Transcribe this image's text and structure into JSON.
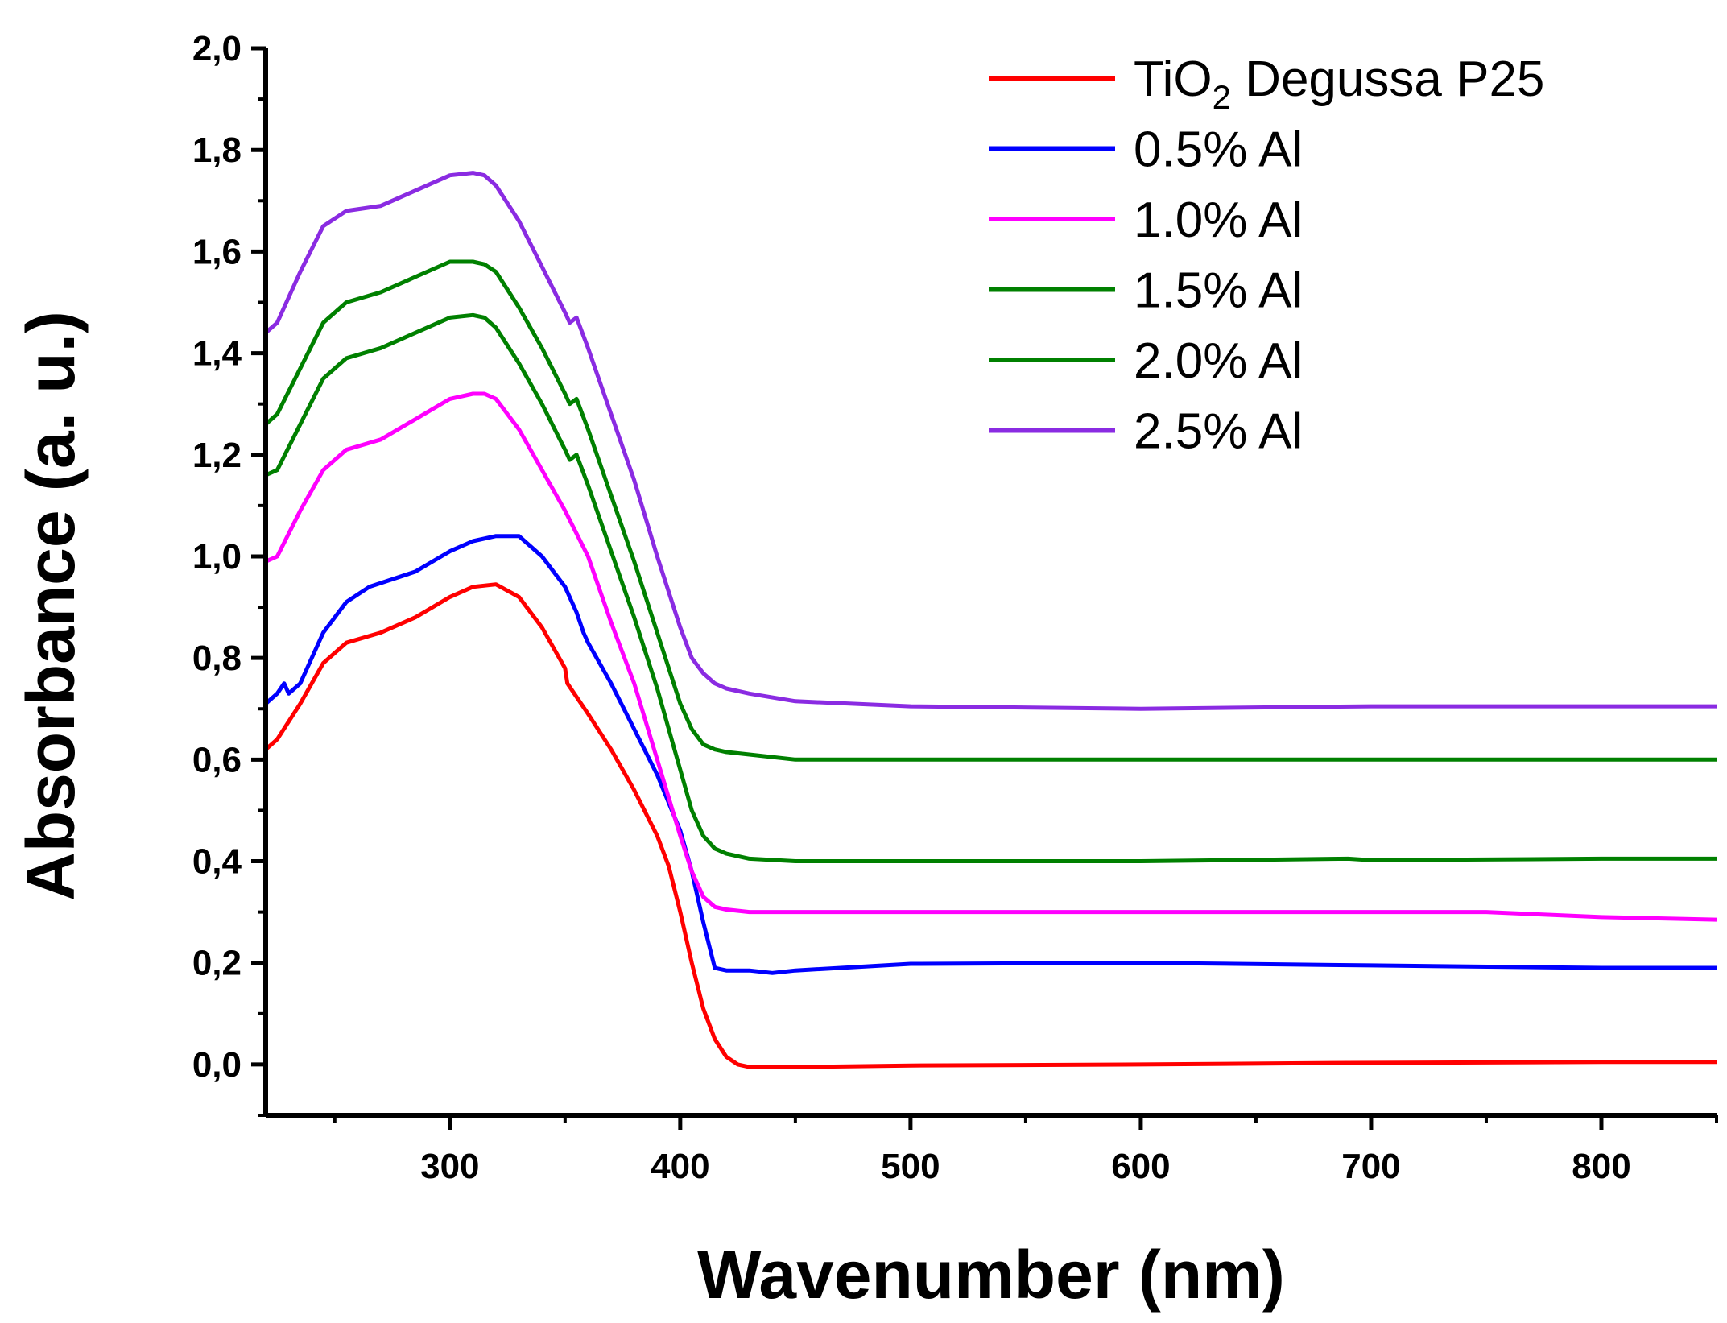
{
  "chart_data": {
    "type": "line",
    "xlabel": "Wavenumber (nm)",
    "ylabel": "Absorbance (a. u.)",
    "xlim": [
      220,
      850
    ],
    "ylim": [
      -0.1,
      2.0
    ],
    "x_ticks": [
      300,
      400,
      500,
      600,
      700,
      800
    ],
    "x_tick_labels": [
      "300",
      "400",
      "500",
      "600",
      "700",
      "800"
    ],
    "y_ticks": [
      0.0,
      0.2,
      0.4,
      0.6,
      0.8,
      1.0,
      1.2,
      1.4,
      1.6,
      1.8,
      2.0
    ],
    "y_tick_labels": [
      "0,0",
      "0,2",
      "0,4",
      "0,6",
      "0,8",
      "1,0",
      "1,2",
      "1,4",
      "1,6",
      "1,8",
      "2,0"
    ],
    "legend_position": "top-right",
    "series": [
      {
        "name": "TiO2 Degussa P25",
        "legend_main": "TiO",
        "legend_sub": "2",
        "legend_rest": " Degussa P25",
        "color": "#ff0000",
        "x": [
          220,
          225,
          235,
          245,
          255,
          270,
          285,
          300,
          310,
          320,
          330,
          340,
          350,
          351,
          360,
          370,
          380,
          390,
          395,
          400,
          405,
          410,
          415,
          420,
          425,
          430,
          440,
          450,
          500,
          600,
          690,
          800,
          850
        ],
        "y": [
          0.62,
          0.64,
          0.71,
          0.79,
          0.83,
          0.85,
          0.88,
          0.92,
          0.94,
          0.945,
          0.92,
          0.86,
          0.78,
          0.75,
          0.69,
          0.62,
          0.54,
          0.45,
          0.39,
          0.3,
          0.2,
          0.11,
          0.05,
          0.015,
          0.0,
          -0.005,
          -0.005,
          -0.005,
          -0.002,
          0.0,
          0.003,
          0.005,
          0.005
        ]
      },
      {
        "name": "0.5% Al",
        "color": "#0000ff",
        "x": [
          220,
          225,
          228,
          230,
          235,
          245,
          255,
          265,
          285,
          300,
          310,
          320,
          330,
          340,
          350,
          355,
          358,
          360,
          370,
          380,
          390,
          400,
          405,
          410,
          415,
          420,
          430,
          440,
          450,
          500,
          600,
          700,
          800,
          850
        ],
        "y": [
          0.71,
          0.73,
          0.75,
          0.73,
          0.75,
          0.85,
          0.91,
          0.94,
          0.97,
          1.01,
          1.03,
          1.04,
          1.04,
          1.0,
          0.94,
          0.89,
          0.85,
          0.83,
          0.75,
          0.66,
          0.57,
          0.46,
          0.38,
          0.28,
          0.19,
          0.185,
          0.185,
          0.18,
          0.185,
          0.198,
          0.2,
          0.195,
          0.19,
          0.19
        ]
      },
      {
        "name": "1.0% Al",
        "color": "#ff00ff",
        "x": [
          220,
          225,
          235,
          245,
          255,
          270,
          285,
          300,
          310,
          315,
          320,
          330,
          340,
          350,
          360,
          370,
          380,
          390,
          400,
          405,
          410,
          415,
          420,
          430,
          450,
          500,
          600,
          700,
          750,
          800,
          850
        ],
        "y": [
          0.99,
          1.0,
          1.09,
          1.17,
          1.21,
          1.23,
          1.27,
          1.31,
          1.32,
          1.32,
          1.31,
          1.25,
          1.17,
          1.09,
          1.0,
          0.87,
          0.75,
          0.6,
          0.45,
          0.38,
          0.33,
          0.31,
          0.305,
          0.3,
          0.3,
          0.3,
          0.3,
          0.3,
          0.3,
          0.29,
          0.285
        ]
      },
      {
        "name": "1.5% Al",
        "color": "#008000",
        "x": [
          220,
          225,
          235,
          245,
          255,
          270,
          285,
          300,
          310,
          315,
          320,
          330,
          340,
          350,
          352,
          355,
          360,
          370,
          380,
          390,
          400,
          405,
          410,
          415,
          420,
          430,
          450,
          500,
          600,
          690,
          700,
          800,
          850
        ],
        "y": [
          1.16,
          1.17,
          1.26,
          1.35,
          1.39,
          1.41,
          1.44,
          1.47,
          1.475,
          1.47,
          1.45,
          1.38,
          1.3,
          1.21,
          1.19,
          1.2,
          1.14,
          1.01,
          0.88,
          0.74,
          0.58,
          0.5,
          0.45,
          0.425,
          0.415,
          0.405,
          0.4,
          0.4,
          0.4,
          0.405,
          0.402,
          0.405,
          0.405
        ]
      },
      {
        "name": "2.0% Al",
        "color": "#008000",
        "x": [
          220,
          225,
          235,
          245,
          255,
          270,
          285,
          300,
          310,
          315,
          320,
          330,
          340,
          350,
          352,
          355,
          360,
          370,
          380,
          390,
          400,
          405,
          410,
          415,
          420,
          430,
          450,
          500,
          600,
          700,
          800,
          850
        ],
        "y": [
          1.26,
          1.28,
          1.37,
          1.46,
          1.5,
          1.52,
          1.55,
          1.58,
          1.58,
          1.575,
          1.56,
          1.49,
          1.41,
          1.32,
          1.3,
          1.31,
          1.25,
          1.12,
          0.99,
          0.85,
          0.71,
          0.66,
          0.63,
          0.62,
          0.615,
          0.61,
          0.6,
          0.6,
          0.6,
          0.6,
          0.6,
          0.6
        ]
      },
      {
        "name": "2.5% Al",
        "color": "#8a2be2",
        "x": [
          220,
          225,
          235,
          245,
          255,
          270,
          285,
          300,
          310,
          315,
          320,
          330,
          340,
          350,
          352,
          355,
          360,
          370,
          380,
          390,
          400,
          405,
          410,
          415,
          420,
          430,
          450,
          500,
          600,
          700,
          800,
          850
        ],
        "y": [
          1.44,
          1.46,
          1.56,
          1.65,
          1.68,
          1.69,
          1.72,
          1.75,
          1.755,
          1.75,
          1.73,
          1.66,
          1.57,
          1.48,
          1.46,
          1.47,
          1.41,
          1.28,
          1.15,
          1.0,
          0.86,
          0.8,
          0.77,
          0.75,
          0.74,
          0.73,
          0.715,
          0.705,
          0.7,
          0.705,
          0.705,
          0.705
        ]
      }
    ]
  }
}
